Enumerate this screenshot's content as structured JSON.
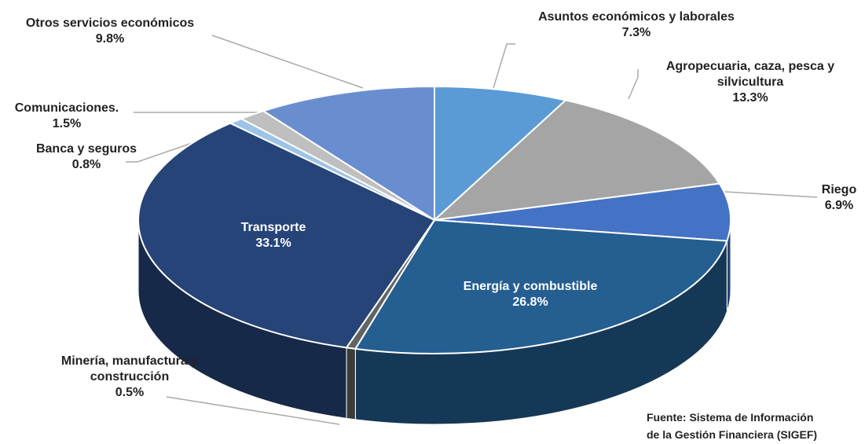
{
  "chart_data": {
    "type": "pie",
    "categories": [
      "Asuntos económicos y  laborales",
      "Agropecuaria, caza, pesca y silvicultura",
      "Riego",
      "Energía y combustible",
      "Minería, manufactura y construcción",
      "Transporte",
      "Banca y seguros",
      "Comunicaciones.",
      "Otros servicios económicos"
    ],
    "values": [
      7.3,
      13.3,
      6.9,
      26.8,
      0.5,
      33.1,
      0.8,
      1.5,
      9.8
    ],
    "value_labels": [
      "7.3%",
      "13.3%",
      "6.9%",
      "26.8%",
      "0.5%",
      "33.1%",
      "0.8%",
      "1.5%",
      "9.8%"
    ],
    "colors": [
      "#5b9bd5",
      "#a5a5a5",
      "#4472c4",
      "#255e91",
      "#636363",
      "#264478",
      "#9dc3e6",
      "#bfbfbf",
      "#698ed0"
    ],
    "source": [
      "Fuente: Sistema de Información",
      "de la Gestión Financiera (SIGEF)"
    ]
  }
}
